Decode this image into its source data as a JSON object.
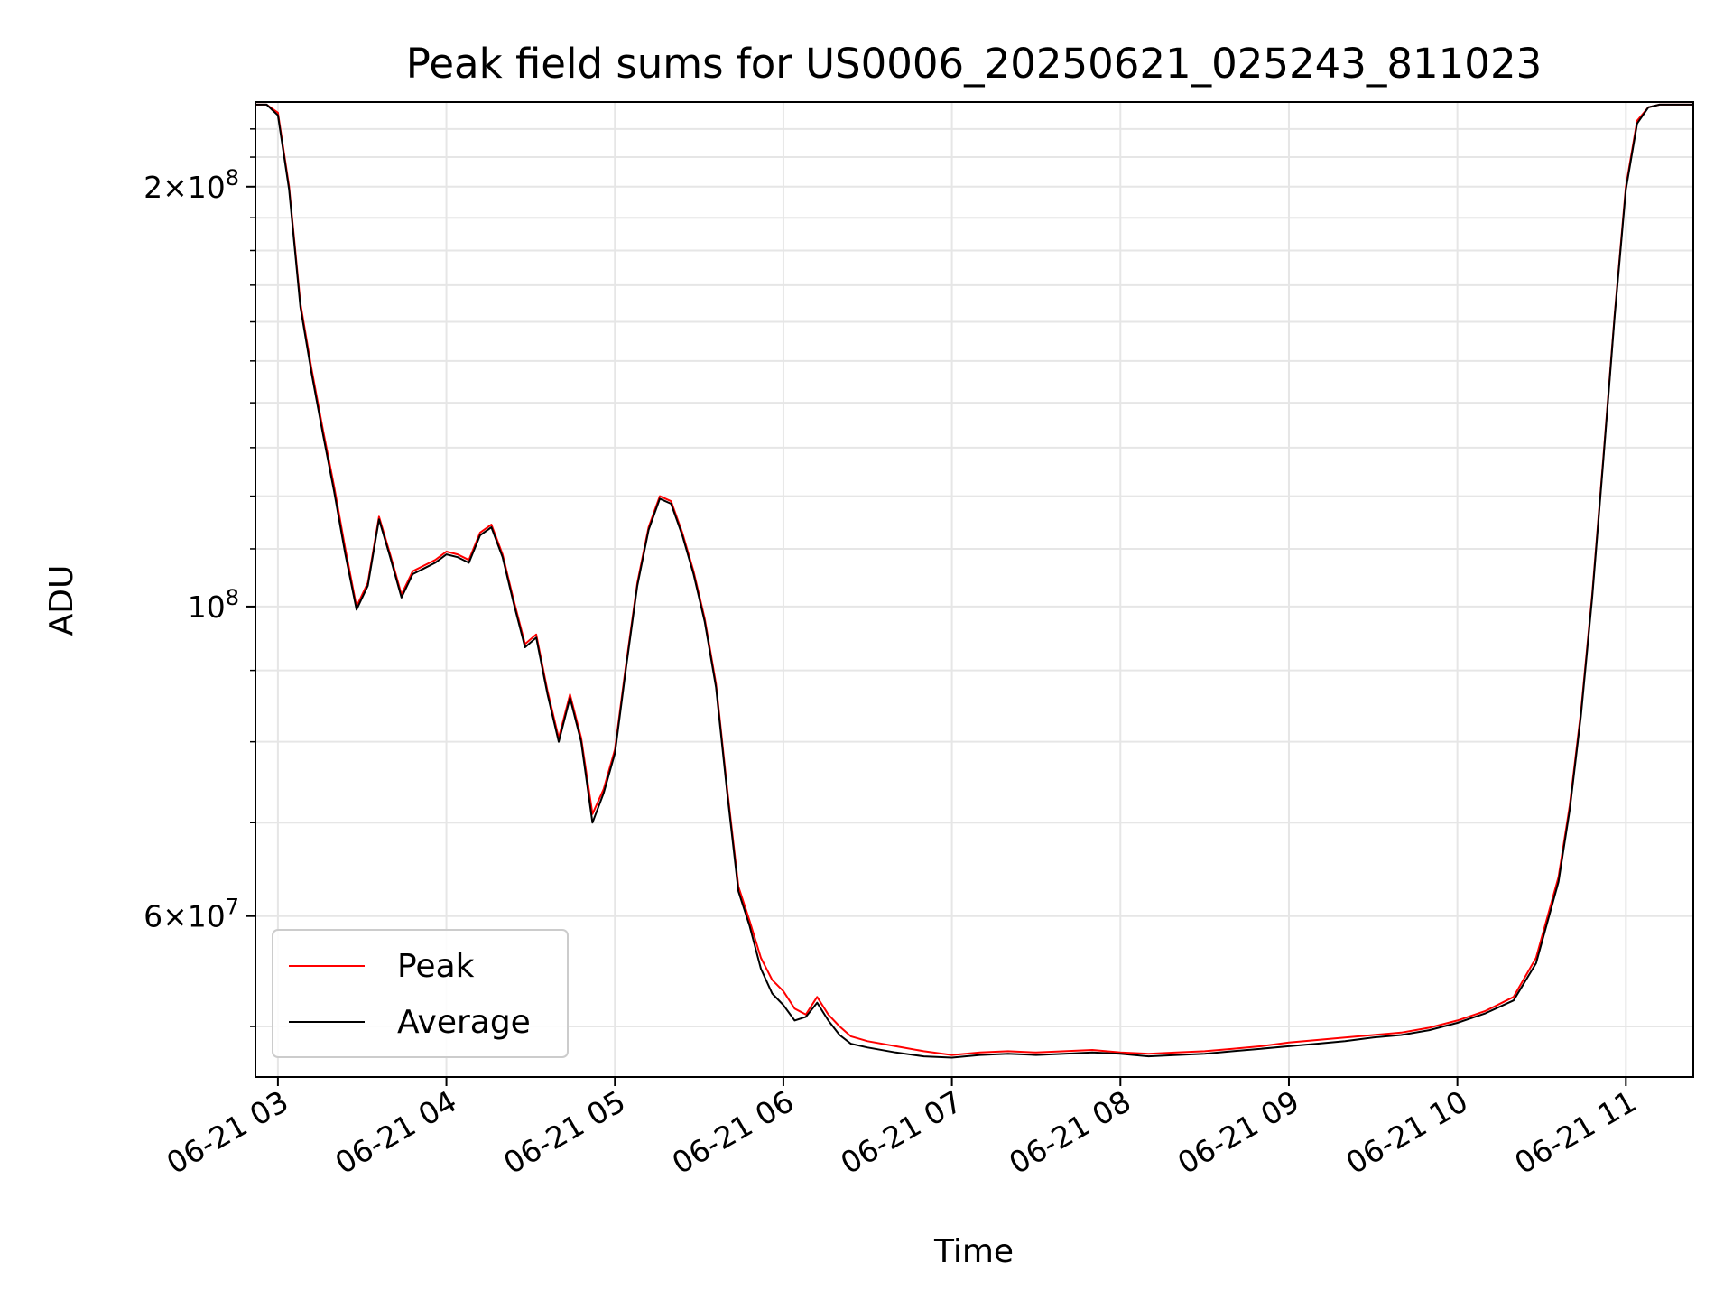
{
  "chart_data": {
    "type": "line",
    "title": "Peak field sums for US0006_20250621_025243_811023",
    "xlabel": "Time",
    "ylabel": "ADU",
    "yscale": "log",
    "xlim": [
      "2025-06-21 02:52",
      "2025-06-21 11:24"
    ],
    "ylim": [
      46000000,
      230000000
    ],
    "grid": true,
    "legend_position": "lower-left",
    "x_ticks": [
      "06-21 03",
      "06-21 04",
      "06-21 05",
      "06-21 06",
      "06-21 07",
      "06-21 08",
      "06-21 09",
      "06-21 10",
      "06-21 11"
    ],
    "y_ticks": [
      {
        "value": 200000000,
        "label": "2×10^8",
        "mantissa": "2",
        "exponent": "8"
      },
      {
        "value": 100000000,
        "label": "10^8",
        "mantissa": "",
        "exponent": "8"
      },
      {
        "value": 60000000,
        "label": "6×10^7",
        "mantissa": "6",
        "exponent": "7"
      }
    ],
    "x": [
      "02:52",
      "02:56",
      "03:00",
      "03:04",
      "03:08",
      "03:12",
      "03:16",
      "03:20",
      "03:24",
      "03:28",
      "03:32",
      "03:36",
      "03:40",
      "03:44",
      "03:48",
      "03:52",
      "03:56",
      "04:00",
      "04:04",
      "04:08",
      "04:12",
      "04:16",
      "04:20",
      "04:24",
      "04:28",
      "04:32",
      "04:36",
      "04:40",
      "04:44",
      "04:48",
      "04:52",
      "04:56",
      "05:00",
      "05:04",
      "05:08",
      "05:12",
      "05:16",
      "05:20",
      "05:24",
      "05:28",
      "05:32",
      "05:36",
      "05:40",
      "05:44",
      "05:48",
      "05:52",
      "05:56",
      "06:00",
      "06:04",
      "06:08",
      "06:12",
      "06:16",
      "06:20",
      "06:24",
      "06:30",
      "06:40",
      "06:50",
      "07:00",
      "07:10",
      "07:20",
      "07:30",
      "07:40",
      "07:50",
      "08:00",
      "08:10",
      "08:20",
      "08:30",
      "08:40",
      "08:50",
      "09:00",
      "09:10",
      "09:20",
      "09:30",
      "09:40",
      "09:50",
      "10:00",
      "10:10",
      "10:20",
      "10:28",
      "10:36",
      "10:40",
      "10:44",
      "10:48",
      "10:52",
      "10:56",
      "11:00",
      "11:04",
      "11:08",
      "11:12",
      "11:16",
      "11:20",
      "11:24"
    ],
    "series": [
      {
        "name": "Peak",
        "color": "#ff0000",
        "values": [
          229000000,
          229000000,
          226000000,
          200000000,
          165000000,
          148000000,
          134000000,
          122000000,
          110000000,
          100000000,
          104000000,
          116000000,
          109000000,
          102000000,
          106000000,
          107000000,
          108000000,
          109500000,
          109000000,
          108000000,
          113000000,
          114500000,
          109000000,
          101000000,
          94000000,
          95500000,
          87000000,
          80500000,
          86500000,
          80500000,
          71000000,
          74000000,
          79000000,
          91000000,
          104000000,
          114000000,
          120000000,
          119000000,
          113000000,
          106000000,
          98000000,
          88000000,
          74000000,
          63000000,
          59500000,
          56000000,
          54000000,
          53000000,
          51500000,
          51000000,
          52500000,
          51000000,
          50000000,
          49200000,
          48800000,
          48400000,
          48000000,
          47700000,
          47900000,
          48000000,
          47900000,
          48000000,
          48100000,
          47900000,
          47800000,
          47900000,
          48000000,
          48200000,
          48400000,
          48700000,
          48900000,
          49100000,
          49300000,
          49500000,
          49900000,
          50500000,
          51300000,
          52500000,
          56000000,
          64000000,
          72000000,
          84000000,
          102000000,
          128000000,
          162000000,
          200000000,
          223000000,
          228000000,
          229000000,
          229000000,
          229000000,
          229000000
        ]
      },
      {
        "name": "Average",
        "color": "#000000",
        "values": [
          229000000,
          229000000,
          225000000,
          199000000,
          164000000,
          147000000,
          133000000,
          121000000,
          109000000,
          99500000,
          103500000,
          115500000,
          108500000,
          101500000,
          105500000,
          106500000,
          107500000,
          109000000,
          108500000,
          107500000,
          112500000,
          114000000,
          108500000,
          100500000,
          93500000,
          95000000,
          86500000,
          80000000,
          86000000,
          80000000,
          70000000,
          73500000,
          78500000,
          90500000,
          103500000,
          113500000,
          119500000,
          118500000,
          112500000,
          105500000,
          97500000,
          87500000,
          73500000,
          62500000,
          59000000,
          55000000,
          52800000,
          51800000,
          50500000,
          50800000,
          52000000,
          50500000,
          49300000,
          48600000,
          48300000,
          47900000,
          47600000,
          47500000,
          47700000,
          47800000,
          47700000,
          47800000,
          47900000,
          47800000,
          47600000,
          47700000,
          47800000,
          48000000,
          48200000,
          48400000,
          48600000,
          48800000,
          49100000,
          49300000,
          49700000,
          50300000,
          51100000,
          52200000,
          55500000,
          63500000,
          71500000,
          83500000,
          101500000,
          127500000,
          161500000,
          199000000,
          222000000,
          228000000,
          229000000,
          229000000,
          229000000,
          229000000
        ]
      }
    ]
  }
}
